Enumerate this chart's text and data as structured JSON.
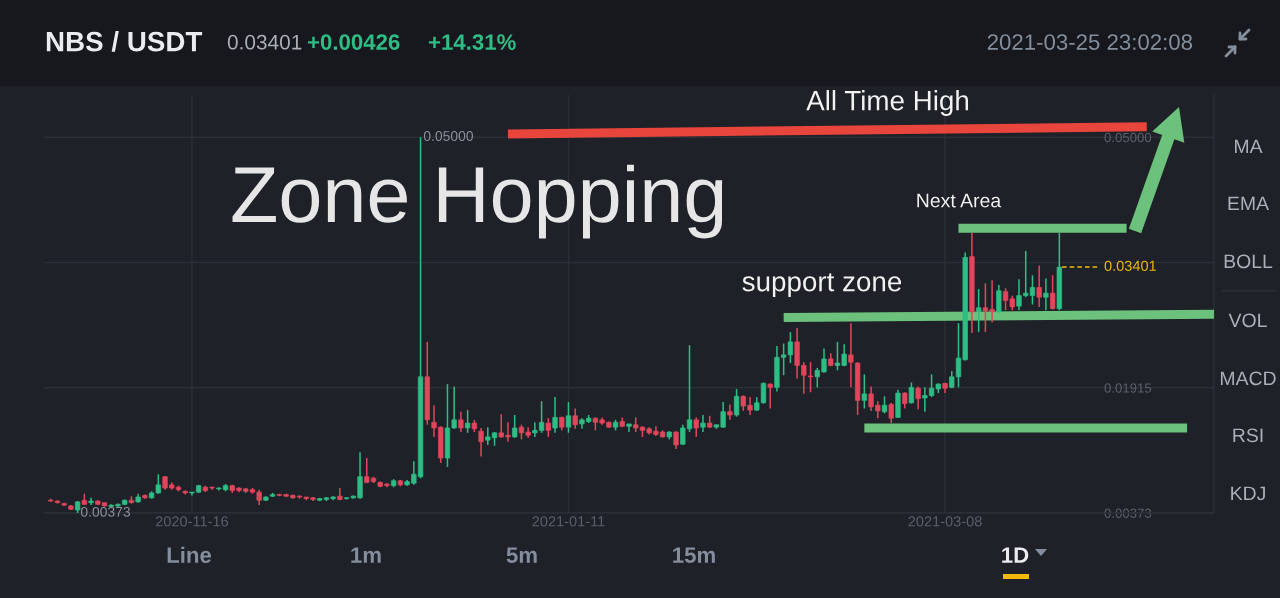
{
  "chart_data": {
    "type": "candlestick",
    "title": "NBS / USDT",
    "x": [
      "2020-10-26",
      "2020-10-27",
      "2020-10-28",
      "2020-10-29",
      "2020-10-30",
      "2020-10-31",
      "2020-11-01",
      "2020-11-02",
      "2020-11-03",
      "2020-11-04",
      "2020-11-05",
      "2020-11-06",
      "2020-11-07",
      "2020-11-08",
      "2020-11-09",
      "2020-11-10",
      "2020-11-11",
      "2020-11-12",
      "2020-11-13",
      "2020-11-14",
      "2020-11-15",
      "2020-11-16",
      "2020-11-17",
      "2020-11-18",
      "2020-11-19",
      "2020-11-20",
      "2020-11-21",
      "2020-11-22",
      "2020-11-23",
      "2020-11-24",
      "2020-11-25",
      "2020-11-26",
      "2020-11-27",
      "2020-11-28",
      "2020-11-29",
      "2020-11-30",
      "2020-12-01",
      "2020-12-02",
      "2020-12-03",
      "2020-12-04",
      "2020-12-05",
      "2020-12-06",
      "2020-12-07",
      "2020-12-08",
      "2020-12-09",
      "2020-12-10",
      "2020-12-11",
      "2020-12-12",
      "2020-12-13",
      "2020-12-14",
      "2020-12-15",
      "2020-12-16",
      "2020-12-17",
      "2020-12-18",
      "2020-12-19",
      "2020-12-20",
      "2020-12-21",
      "2020-12-22",
      "2020-12-23",
      "2020-12-24",
      "2020-12-25",
      "2020-12-26",
      "2020-12-27",
      "2020-12-28",
      "2020-12-29",
      "2020-12-30",
      "2020-12-31",
      "2021-01-01",
      "2021-01-02",
      "2021-01-03",
      "2021-01-04",
      "2021-01-05",
      "2021-01-06",
      "2021-01-07",
      "2021-01-08",
      "2021-01-09",
      "2021-01-10",
      "2021-01-11",
      "2021-01-12",
      "2021-01-13",
      "2021-01-14",
      "2021-01-15",
      "2021-01-16",
      "2021-01-17",
      "2021-01-18",
      "2021-01-19",
      "2021-01-20",
      "2021-01-21",
      "2021-01-22",
      "2021-01-23",
      "2021-01-24",
      "2021-01-25",
      "2021-01-26",
      "2021-01-27",
      "2021-01-28",
      "2021-01-29",
      "2021-01-30",
      "2021-01-31",
      "2021-02-01",
      "2021-02-02",
      "2021-02-03",
      "2021-02-04",
      "2021-02-05",
      "2021-02-06",
      "2021-02-07",
      "2021-02-08",
      "2021-02-09",
      "2021-02-10",
      "2021-02-11",
      "2021-02-12",
      "2021-02-13",
      "2021-02-14",
      "2021-02-15",
      "2021-02-16",
      "2021-02-17",
      "2021-02-18",
      "2021-02-19",
      "2021-02-20",
      "2021-02-21",
      "2021-02-22",
      "2021-02-23",
      "2021-02-24",
      "2021-02-25",
      "2021-02-26",
      "2021-02-27",
      "2021-02-28",
      "2021-03-01",
      "2021-03-02",
      "2021-03-03",
      "2021-03-04",
      "2021-03-05",
      "2021-03-06",
      "2021-03-07",
      "2021-03-08",
      "2021-03-09",
      "2021-03-10",
      "2021-03-11",
      "2021-03-12",
      "2021-03-13",
      "2021-03-14",
      "2021-03-15",
      "2021-03-16",
      "2021-03-17",
      "2021-03-18",
      "2021-03-19",
      "2021-03-20",
      "2021-03-21",
      "2021-03-22",
      "2021-03-23",
      "2021-03-24",
      "2021-03-25"
    ],
    "ohlc": [
      [
        0.0053,
        0.0055,
        0.0051,
        0.0052
      ],
      [
        0.0052,
        0.0053,
        0.0049,
        0.005
      ],
      [
        0.0049,
        0.005,
        0.0046,
        0.0047
      ],
      [
        0.0046,
        0.0047,
        0.0041,
        0.0042
      ],
      [
        0.0041,
        0.0052,
        0.00373,
        0.0051
      ],
      [
        0.0053,
        0.0061,
        0.0047,
        0.0048
      ],
      [
        0.005,
        0.0056,
        0.0047,
        0.0052
      ],
      [
        0.0052,
        0.0053,
        0.0047,
        0.0048
      ],
      [
        0.005,
        0.005,
        0.0045,
        0.0046
      ],
      [
        0.0045,
        0.0048,
        0.0044,
        0.0047
      ],
      [
        0.0046,
        0.0049,
        0.0045,
        0.0048
      ],
      [
        0.0048,
        0.0054,
        0.0047,
        0.0053
      ],
      [
        0.0053,
        0.0058,
        0.0049,
        0.005
      ],
      [
        0.0051,
        0.0061,
        0.005,
        0.0057
      ],
      [
        0.0059,
        0.006,
        0.0055,
        0.0056
      ],
      [
        0.0056,
        0.0064,
        0.0055,
        0.0062
      ],
      [
        0.0062,
        0.0085,
        0.0061,
        0.0072
      ],
      [
        0.0082,
        0.0083,
        0.0066,
        0.0068
      ],
      [
        0.0072,
        0.0075,
        0.0066,
        0.0068
      ],
      [
        0.0069,
        0.0071,
        0.0064,
        0.0066
      ],
      [
        0.0064,
        0.0065,
        0.006,
        0.0062
      ],
      [
        0.0062,
        0.0063,
        0.0059,
        0.0063
      ],
      [
        0.0063,
        0.0072,
        0.0062,
        0.0071
      ],
      [
        0.0069,
        0.0071,
        0.0063,
        0.0065
      ],
      [
        0.0069,
        0.007,
        0.0066,
        0.0068
      ],
      [
        0.0067,
        0.0069,
        0.0065,
        0.0068
      ],
      [
        0.0066,
        0.0073,
        0.0064,
        0.0071
      ],
      [
        0.0071,
        0.0072,
        0.0062,
        0.0065
      ],
      [
        0.0068,
        0.0069,
        0.0063,
        0.0065
      ],
      [
        0.0067,
        0.0068,
        0.0062,
        0.0064
      ],
      [
        0.0066,
        0.0068,
        0.0061,
        0.0063
      ],
      [
        0.0063,
        0.0066,
        0.0047,
        0.0053
      ],
      [
        0.0053,
        0.0058,
        0.0052,
        0.0057
      ],
      [
        0.0058,
        0.0062,
        0.0057,
        0.006
      ],
      [
        0.006,
        0.0061,
        0.0058,
        0.0059
      ],
      [
        0.006,
        0.0061,
        0.0057,
        0.0058
      ],
      [
        0.0059,
        0.006,
        0.0055,
        0.0056
      ],
      [
        0.0058,
        0.0059,
        0.0055,
        0.0057
      ],
      [
        0.0057,
        0.0057,
        0.0053,
        0.0055
      ],
      [
        0.0056,
        0.0057,
        0.0052,
        0.0054
      ],
      [
        0.0053,
        0.0056,
        0.0052,
        0.0055
      ],
      [
        0.0054,
        0.0057,
        0.0052,
        0.0056
      ],
      [
        0.0055,
        0.0058,
        0.0053,
        0.0057
      ],
      [
        0.0058,
        0.0068,
        0.0053,
        0.0054
      ],
      [
        0.0055,
        0.0057,
        0.0054,
        0.0056
      ],
      [
        0.0056,
        0.0059,
        0.0055,
        0.0058
      ],
      [
        0.0056,
        0.0112,
        0.0055,
        0.0082
      ],
      [
        0.0082,
        0.0105,
        0.0074,
        0.0075
      ],
      [
        0.008,
        0.0082,
        0.0074,
        0.0076
      ],
      [
        0.0075,
        0.0076,
        0.0069,
        0.007
      ],
      [
        0.0073,
        0.0074,
        0.0069,
        0.0071
      ],
      [
        0.0071,
        0.0079,
        0.0069,
        0.0077
      ],
      [
        0.0077,
        0.0078,
        0.007,
        0.0072
      ],
      [
        0.0072,
        0.0078,
        0.0071,
        0.0076
      ],
      [
        0.0074,
        0.0101,
        0.0072,
        0.0085
      ],
      [
        0.0082,
        0.05,
        0.008,
        0.0205
      ],
      [
        0.0205,
        0.0248,
        0.0146,
        0.0152
      ],
      [
        0.0149,
        0.017,
        0.0131,
        0.0142
      ],
      [
        0.0143,
        0.0144,
        0.0099,
        0.0105
      ],
      [
        0.0105,
        0.0196,
        0.0094,
        0.0142
      ],
      [
        0.0142,
        0.0193,
        0.0141,
        0.0152
      ],
      [
        0.0152,
        0.0162,
        0.0137,
        0.0142
      ],
      [
        0.0142,
        0.0164,
        0.0136,
        0.0148
      ],
      [
        0.0148,
        0.0152,
        0.0137,
        0.0141
      ],
      [
        0.0138,
        0.0142,
        0.0107,
        0.0125
      ],
      [
        0.0127,
        0.0143,
        0.0121,
        0.0131
      ],
      [
        0.013,
        0.0137,
        0.012,
        0.0136
      ],
      [
        0.0136,
        0.0159,
        0.013,
        0.0131
      ],
      [
        0.0133,
        0.0149,
        0.0125,
        0.0131
      ],
      [
        0.0131,
        0.0158,
        0.013,
        0.0142
      ],
      [
        0.0143,
        0.0146,
        0.0128,
        0.0136
      ],
      [
        0.0137,
        0.0143,
        0.013,
        0.0133
      ],
      [
        0.0136,
        0.0149,
        0.0131,
        0.0139
      ],
      [
        0.0139,
        0.0175,
        0.0136,
        0.0149
      ],
      [
        0.0148,
        0.0154,
        0.0131,
        0.0139
      ],
      [
        0.0142,
        0.018,
        0.0136,
        0.0155
      ],
      [
        0.0155,
        0.0156,
        0.0139,
        0.0143
      ],
      [
        0.0143,
        0.0174,
        0.0136,
        0.0157
      ],
      [
        0.0157,
        0.0166,
        0.0141,
        0.0146
      ],
      [
        0.0147,
        0.0154,
        0.0141,
        0.0152
      ],
      [
        0.015,
        0.0158,
        0.0148,
        0.0154
      ],
      [
        0.0154,
        0.0155,
        0.0139,
        0.0149
      ],
      [
        0.0152,
        0.0155,
        0.0146,
        0.0148
      ],
      [
        0.0149,
        0.015,
        0.0142,
        0.0143
      ],
      [
        0.0143,
        0.0152,
        0.0139,
        0.0149
      ],
      [
        0.015,
        0.0155,
        0.0143,
        0.0144
      ],
      [
        0.0144,
        0.0147,
        0.0137,
        0.0147
      ],
      [
        0.0146,
        0.0155,
        0.0137,
        0.0142
      ],
      [
        0.0143,
        0.0144,
        0.0131,
        0.0139
      ],
      [
        0.0141,
        0.0143,
        0.0134,
        0.0136
      ],
      [
        0.0138,
        0.0144,
        0.0132,
        0.0134
      ],
      [
        0.0137,
        0.0139,
        0.013,
        0.0131
      ],
      [
        0.0131,
        0.0138,
        0.0128,
        0.0137
      ],
      [
        0.0137,
        0.0138,
        0.0116,
        0.0121
      ],
      [
        0.0122,
        0.0146,
        0.0121,
        0.0142
      ],
      [
        0.0141,
        0.0244,
        0.0137,
        0.0152
      ],
      [
        0.0152,
        0.0155,
        0.0131,
        0.0142
      ],
      [
        0.0143,
        0.0158,
        0.0137,
        0.0148
      ],
      [
        0.0148,
        0.0157,
        0.0142,
        0.0143
      ],
      [
        0.0143,
        0.0146,
        0.0141,
        0.0146
      ],
      [
        0.0143,
        0.0174,
        0.0142,
        0.0162
      ],
      [
        0.0162,
        0.0171,
        0.0152,
        0.0158
      ],
      [
        0.0158,
        0.019,
        0.0156,
        0.0181
      ],
      [
        0.0181,
        0.0182,
        0.0163,
        0.0169
      ],
      [
        0.017,
        0.018,
        0.0158,
        0.0164
      ],
      [
        0.0164,
        0.018,
        0.0163,
        0.0173
      ],
      [
        0.0173,
        0.0198,
        0.0172,
        0.0197
      ],
      [
        0.0196,
        0.0197,
        0.0166,
        0.0192
      ],
      [
        0.0192,
        0.0243,
        0.0187,
        0.0229
      ],
      [
        0.0229,
        0.0246,
        0.0207,
        0.0232
      ],
      [
        0.0232,
        0.026,
        0.0222,
        0.0248
      ],
      [
        0.0248,
        0.0265,
        0.0203,
        0.0219
      ],
      [
        0.0219,
        0.0223,
        0.0184,
        0.0207
      ],
      [
        0.0206,
        0.0223,
        0.0186,
        0.0205
      ],
      [
        0.0205,
        0.0216,
        0.0192,
        0.0213
      ],
      [
        0.0211,
        0.024,
        0.021,
        0.0227
      ],
      [
        0.0227,
        0.0234,
        0.0218,
        0.0219
      ],
      [
        0.0219,
        0.0248,
        0.0213,
        0.0222
      ],
      [
        0.0219,
        0.0245,
        0.0218,
        0.0233
      ],
      [
        0.0232,
        0.0271,
        0.0192,
        0.0223
      ],
      [
        0.0222,
        0.0223,
        0.0158,
        0.0176
      ],
      [
        0.0176,
        0.0208,
        0.0166,
        0.0184
      ],
      [
        0.0184,
        0.0193,
        0.0163,
        0.0168
      ],
      [
        0.017,
        0.0175,
        0.0154,
        0.0163
      ],
      [
        0.0162,
        0.0181,
        0.016,
        0.017
      ],
      [
        0.0171,
        0.0173,
        0.0148,
        0.0154
      ],
      [
        0.0155,
        0.0189,
        0.0155,
        0.0185
      ],
      [
        0.0185,
        0.0186,
        0.0166,
        0.0172
      ],
      [
        0.0173,
        0.0198,
        0.0172,
        0.0192
      ],
      [
        0.0191,
        0.0193,
        0.0165,
        0.0178
      ],
      [
        0.0179,
        0.0192,
        0.0162,
        0.0182
      ],
      [
        0.0182,
        0.0208,
        0.018,
        0.0191
      ],
      [
        0.019,
        0.0197,
        0.0185,
        0.0196
      ],
      [
        0.0197,
        0.0197,
        0.0185,
        0.0191
      ],
      [
        0.0192,
        0.0212,
        0.0191,
        0.0205
      ],
      [
        0.0205,
        0.0271,
        0.0192,
        0.0228
      ],
      [
        0.0226,
        0.0358,
        0.0225,
        0.0352
      ],
      [
        0.0353,
        0.0382,
        0.0259,
        0.0285
      ],
      [
        0.0285,
        0.0313,
        0.026,
        0.029
      ],
      [
        0.029,
        0.032,
        0.026,
        0.0286
      ],
      [
        0.0288,
        0.0324,
        0.0272,
        0.0285
      ],
      [
        0.0285,
        0.0318,
        0.0284,
        0.0311
      ],
      [
        0.031,
        0.0314,
        0.0287,
        0.0299
      ],
      [
        0.0301,
        0.0305,
        0.0287,
        0.0291
      ],
      [
        0.0292,
        0.0325,
        0.0287,
        0.0305
      ],
      [
        0.0305,
        0.036,
        0.0303,
        0.0308
      ],
      [
        0.0305,
        0.033,
        0.0294,
        0.0315
      ],
      [
        0.0315,
        0.0342,
        0.0291,
        0.0303
      ],
      [
        0.0303,
        0.0326,
        0.0287,
        0.0308
      ],
      [
        0.0308,
        0.033,
        0.0288,
        0.0289
      ],
      [
        0.0289,
        0.0382,
        0.0287,
        0.03401
      ]
    ],
    "colors": [
      "#e0465c",
      "#e0465c",
      "#e0465c",
      "#e0465c",
      "#2ebd85",
      "#e0465c",
      "#2ebd85",
      "#e0465c",
      "#e0465c",
      "#2ebd85",
      "#2ebd85",
      "#2ebd85",
      "#e0465c",
      "#2ebd85",
      "#e0465c",
      "#2ebd85",
      "#2ebd85",
      "#e0465c",
      "#e0465c",
      "#e0465c",
      "#e0465c",
      "#2ebd85",
      "#2ebd85",
      "#e0465c",
      "#e0465c",
      "#2ebd85",
      "#2ebd85",
      "#e0465c",
      "#e0465c",
      "#e0465c",
      "#e0465c",
      "#e0465c",
      "#2ebd85",
      "#2ebd85",
      "#e0465c",
      "#e0465c",
      "#e0465c",
      "#e0465c",
      "#e0465c",
      "#e0465c",
      "#2ebd85",
      "#2ebd85",
      "#2ebd85",
      "#e0465c",
      "#2ebd85",
      "#2ebd85",
      "#2ebd85",
      "#e0465c",
      "#e0465c",
      "#e0465c",
      "#e0465c",
      "#2ebd85",
      "#e0465c",
      "#2ebd85",
      "#2ebd85",
      "#2ebd85",
      "#e0465c",
      "#e0465c",
      "#e0465c",
      "#2ebd85",
      "#2ebd85",
      "#e0465c",
      "#2ebd85",
      "#e0465c",
      "#e0465c",
      "#2ebd85",
      "#2ebd85",
      "#e0465c",
      "#e0465c",
      "#2ebd85",
      "#e0465c",
      "#e0465c",
      "#2ebd85",
      "#2ebd85",
      "#e0465c",
      "#2ebd85",
      "#e0465c",
      "#2ebd85",
      "#e0465c",
      "#2ebd85",
      "#2ebd85",
      "#e0465c",
      "#e0465c",
      "#e0465c",
      "#2ebd85",
      "#e0465c",
      "#2ebd85",
      "#e0465c",
      "#e0465c",
      "#e0465c",
      "#e0465c",
      "#e0465c",
      "#2ebd85",
      "#e0465c",
      "#2ebd85",
      "#2ebd85",
      "#e0465c",
      "#2ebd85",
      "#e0465c",
      "#2ebd85",
      "#2ebd85",
      "#e0465c",
      "#2ebd85",
      "#e0465c",
      "#e0465c",
      "#2ebd85",
      "#2ebd85",
      "#e0465c",
      "#2ebd85",
      "#2ebd85",
      "#2ebd85",
      "#e0465c",
      "#e0465c",
      "#e0465c",
      "#2ebd85",
      "#2ebd85",
      "#e0465c",
      "#2ebd85",
      "#2ebd85",
      "#e0465c",
      "#e0465c",
      "#2ebd85",
      "#e0465c",
      "#e0465c",
      "#2ebd85",
      "#e0465c",
      "#2ebd85",
      "#e0465c",
      "#2ebd85",
      "#e0465c",
      "#2ebd85",
      "#2ebd85",
      "#2ebd85",
      "#e0465c",
      "#2ebd85",
      "#2ebd85",
      "#2ebd85",
      "#e0465c",
      "#2ebd85",
      "#e0465c",
      "#e0465c",
      "#2ebd85",
      "#e0465c",
      "#e0465c",
      "#2ebd85",
      "#2ebd85",
      "#2ebd85",
      "#e0465c",
      "#2ebd85",
      "#e0465c",
      "#2ebd85"
    ],
    "xlim": [
      "2020-10-25",
      "2021-04-17"
    ],
    "xticks": [
      "2020-11-16",
      "2021-01-11",
      "2021-03-08"
    ],
    "ylim": [
      0.00373,
      0.0552
    ],
    "yticks": [
      0.00373,
      0.01915,
      {
        "value": 0.03458,
        "label": null
      },
      {
        "value": 0.05,
        "label": "0.05000"
      }
    ],
    "grid": true,
    "series": [
      {
        "type": "line",
        "color": "#e8453c",
        "x": [
          "2021-01-02",
          "2021-04-07"
        ],
        "values": [
          0.0504,
          0.0513
        ]
      },
      {
        "type": "line",
        "color": "#6cc27c",
        "x": [
          "2021-03-10",
          "2021-04-04"
        ],
        "values": [
          0.0388,
          0.0388
        ]
      },
      {
        "type": "line",
        "color": "#6cc27c",
        "x": [
          "2021-02-12",
          "2021-04-17"
        ],
        "values": [
          0.0278,
          0.0282
        ]
      },
      {
        "type": "line",
        "color": "#6cc27c",
        "x": [
          "2021-02-24",
          "2021-04-13"
        ],
        "values": [
          0.0142,
          0.0142
        ]
      }
    ],
    "ref_lines": [
      {
        "axis": "y",
        "value": 0.03401,
        "label": "0.03401",
        "color": "#f0b90b",
        "line_style": "dashed"
      }
    ],
    "annotations": [
      "0.03401",
      "+0.00426",
      "+14.31%",
      "2021-03-25 23:02:08",
      "Zone Hopping",
      "MA",
      "EMA",
      "BOLL",
      "VOL",
      "MACD",
      "RSI",
      "KDJ",
      "Line",
      "1m",
      "5m",
      "15m",
      "1D",
      "All Time High",
      "support zone",
      {
        "text": "0.05000",
        "x": "2020-12-20",
        "y": 0.05
      },
      {
        "text": "0.00373",
        "x": "2020-10-30",
        "y": 0.00373
      },
      {
        "text": "Next Area",
        "x": "2021-03-10",
        "y": 0.0388
      }
    ]
  }
}
